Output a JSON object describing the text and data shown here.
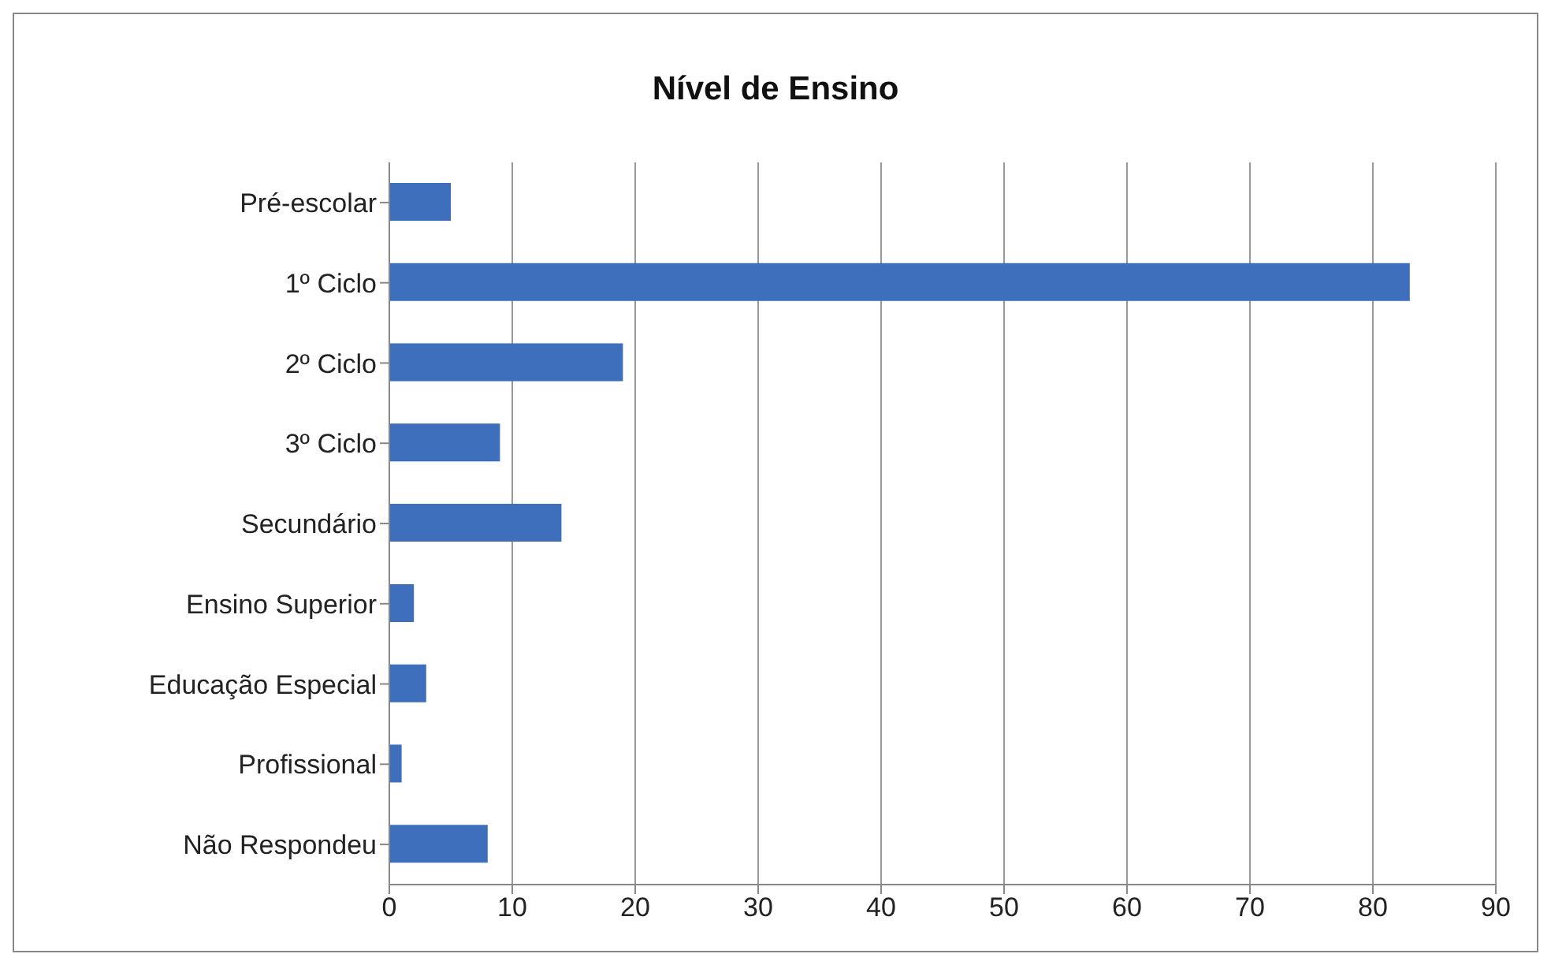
{
  "chart_data": {
    "type": "bar",
    "orientation": "horizontal",
    "title": "Nível de Ensino",
    "categories": [
      "Pré-escolar",
      "1º Ciclo",
      "2º Ciclo",
      "3º Ciclo",
      "Secundário",
      "Ensino Superior",
      "Educação Especial",
      "Profissional",
      "Não Respondeu"
    ],
    "values": [
      5,
      83,
      19,
      9,
      14,
      2,
      3,
      1,
      8
    ],
    "color": "#3d6fbd",
    "xlim": [
      0,
      90
    ],
    "xticks": [
      0,
      10,
      20,
      30,
      40,
      50,
      60,
      70,
      80,
      90
    ],
    "grid": "x"
  }
}
